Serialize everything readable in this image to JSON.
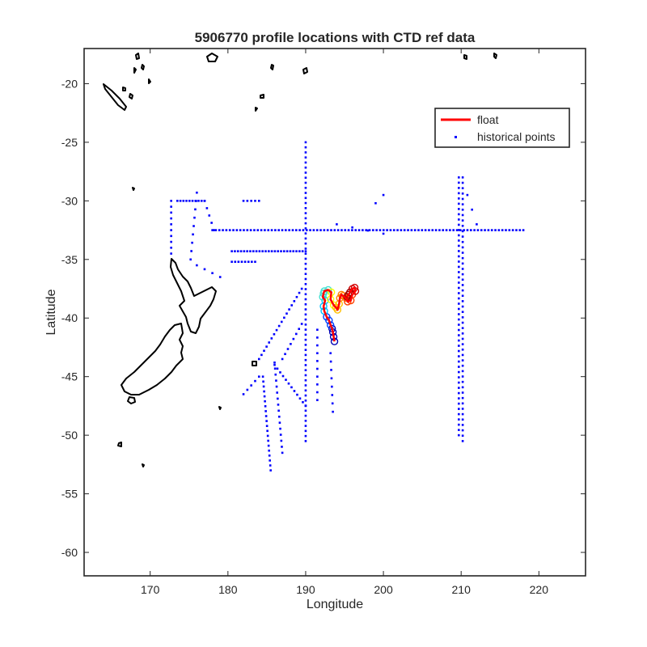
{
  "chart_data": {
    "type": "scatter",
    "title": "5906770 profile locations with CTD ref data",
    "xlabel": "Longitude",
    "ylabel": "Latitude",
    "xlim": [
      161.5,
      226
    ],
    "ylim": [
      -62,
      -17
    ],
    "xticks": [
      170,
      180,
      190,
      200,
      210,
      220
    ],
    "yticks": [
      -20,
      -25,
      -30,
      -35,
      -40,
      -45,
      -50,
      -55,
      -60
    ],
    "grid": false,
    "legend": {
      "location": "top-right",
      "entries": [
        "float",
        "historical points"
      ]
    },
    "colors": {
      "float": "#ff0000",
      "historical": "#0000ff",
      "coast": "#000000"
    },
    "series": [
      {
        "name": "float",
        "type": "line",
        "x": [
          193.7,
          193.6,
          193.5,
          193.4,
          193.2,
          193.0,
          192.7,
          192.4,
          192.3,
          192.5,
          192.2,
          192.3,
          192.4,
          192.9,
          193.3,
          193.2,
          193.6,
          193.9,
          194.1,
          194.3,
          194.4,
          194.6,
          194.8,
          195.2,
          195.4,
          195.8,
          196.0,
          196.4,
          196.3,
          196.0,
          195.7,
          195.5,
          195.3
        ],
        "y": [
          -42.0,
          -41.6,
          -41.2,
          -40.9,
          -40.6,
          -40.2,
          -39.9,
          -39.4,
          -39.0,
          -38.5,
          -38.2,
          -37.9,
          -37.7,
          -37.6,
          -37.8,
          -38.4,
          -38.9,
          -39.1,
          -39.3,
          -38.8,
          -38.3,
          -38.0,
          -38.1,
          -38.3,
          -38.6,
          -38.5,
          -38.0,
          -37.7,
          -37.4,
          -37.5,
          -37.8,
          -38.0,
          -38.2
        ]
      },
      {
        "name": "historical points",
        "type": "scatter",
        "segments": [
          {
            "from": [
              190,
              -25
            ],
            "to": [
              190,
              -50.5
            ],
            "n": 60
          },
          {
            "from": [
              178,
              -32.5
            ],
            "to": [
              218,
              -32.5
            ],
            "n": 90
          },
          {
            "from": [
              209.7,
              -28
            ],
            "to": [
              209.7,
              -50
            ],
            "n": 50
          },
          {
            "from": [
              210.2,
              -28
            ],
            "to": [
              210.2,
              -50.5
            ],
            "n": 50
          },
          {
            "from": [
              173.5,
              -30
            ],
            "to": [
              177,
              -30
            ],
            "n": 10
          },
          {
            "from": [
              177,
              -30
            ],
            "to": [
              178.2,
              -32.5
            ],
            "n": 5
          },
          {
            "from": [
              172.7,
              -30
            ],
            "to": [
              172.7,
              -34.5
            ],
            "n": 10
          },
          {
            "from": [
              176,
              -29.3
            ],
            "to": [
              175.2,
              -35
            ],
            "n": 9
          },
          {
            "from": [
              180.5,
              -34.3
            ],
            "to": [
              190,
              -34.3
            ],
            "n": 25
          },
          {
            "from": [
              180.5,
              -35.2
            ],
            "to": [
              183.5,
              -35.2
            ],
            "n": 8
          },
          {
            "from": [
              182,
              -30
            ],
            "to": [
              184,
              -30
            ],
            "n": 5
          },
          {
            "from": [
              189.5,
              -37.5
            ],
            "to": [
              184,
              -43.5
            ],
            "n": 18
          },
          {
            "from": [
              189.5,
              -40.5
            ],
            "to": [
              187,
              -43.5
            ],
            "n": 8
          },
          {
            "from": [
              186,
              -44
            ],
            "to": [
              190,
              -47.5
            ],
            "n": 12
          },
          {
            "from": [
              184,
              -45
            ],
            "to": [
              182,
              -46.5
            ],
            "n": 5
          },
          {
            "from": [
              184.5,
              -45
            ],
            "to": [
              185.5,
              -53
            ],
            "n": 20
          },
          {
            "from": [
              186,
              -43.8
            ],
            "to": [
              187,
              -51.5
            ],
            "n": 16
          },
          {
            "from": [
              191.5,
              -41
            ],
            "to": [
              191.5,
              -47
            ],
            "n": 10
          },
          {
            "from": [
              193.2,
              -43
            ],
            "to": [
              193.5,
              -48
            ],
            "n": 8
          },
          {
            "from": [
              179,
              -36.5
            ],
            "to": [
              176,
              -35.5
            ],
            "n": 4
          },
          {
            "from": [
              200,
              -29.5
            ],
            "to": [
              199,
              -30.2
            ],
            "n": 2
          },
          {
            "from": [
              194,
              -32
            ],
            "to": [
              200,
              -32.8
            ],
            "n": 4
          },
          {
            "from": [
              210.8,
              -29.5
            ],
            "to": [
              212,
              -32
            ],
            "n": 3
          }
        ]
      }
    ]
  }
}
